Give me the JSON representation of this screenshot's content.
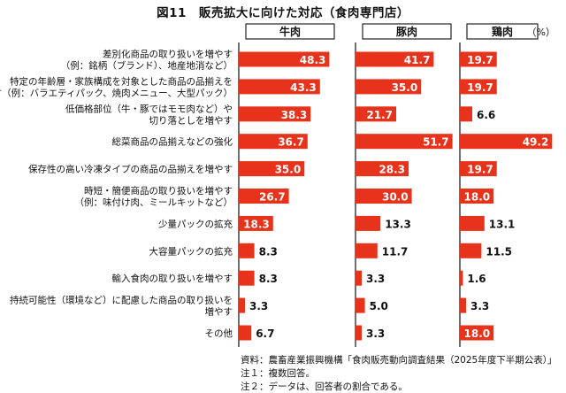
{
  "title": "図11　販売拡大に向けた対応（食肉専門店）",
  "unit_label": "（%）",
  "notes": [
    "資料：農畜産業振興機構「食肉販売動向調査結果（2025年度下半期公表）」",
    "注１：複数回答。",
    "注２：データは、回答者の割合である。"
  ],
  "colors": {
    "bar": "#e8331c",
    "axis": "#222222",
    "label_in_bar": "#ffffff",
    "label_out": "#111111"
  },
  "chart_data": {
    "type": "bar",
    "orientation": "horizontal",
    "title": "図11　販売拡大に向けた対応（食肉専門店）",
    "unit": "%",
    "categories": [
      [
        "差別化商品の取り扱いを増やす",
        "（例：銘柄（ブランド）、地産地消など）"
      ],
      [
        "特定の年齢層・家族構成を対象とした商品の品揃えを",
        "増やす（例：バラエティパック、焼肉メニュー、大型パック）"
      ],
      [
        "低価格部位（牛・豚ではモモ肉など）や",
        "切り落としを増やす"
      ],
      [
        "総菜商品の品揃えなどの強化"
      ],
      [
        "保存性の高い冷凍タイプの商品の品揃えを増やす"
      ],
      [
        "時短・簡便商品の取り扱いを増やす",
        "（例：味付け肉、ミールキットなど）"
      ],
      [
        "少量パックの拡充"
      ],
      [
        "大容量パックの拡充"
      ],
      [
        "輸入食肉の取り扱いを増やす"
      ],
      [
        "持続可能性（環境など）に配慮した商品の取り扱いを",
        "増やす"
      ],
      [
        "その他"
      ]
    ],
    "series": [
      {
        "name": "牛肉",
        "values": [
          48.3,
          43.3,
          38.3,
          36.7,
          35.0,
          26.7,
          18.3,
          8.3,
          8.3,
          3.3,
          6.7
        ]
      },
      {
        "name": "豚肉",
        "values": [
          41.7,
          35.0,
          21.7,
          51.7,
          28.3,
          30.0,
          13.3,
          11.7,
          3.3,
          5.0,
          3.3
        ]
      },
      {
        "name": "鶏肉",
        "values": [
          19.7,
          19.7,
          6.6,
          49.2,
          19.7,
          18.0,
          13.1,
          11.5,
          1.6,
          3.3,
          18.0
        ]
      }
    ],
    "xlim": [
      0,
      55
    ]
  }
}
